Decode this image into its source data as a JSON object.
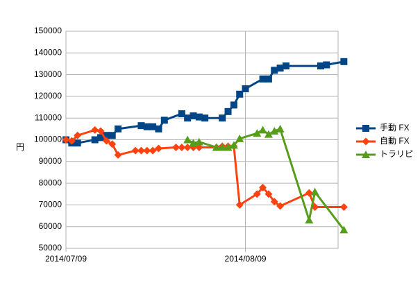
{
  "chart_data": {
    "type": "line",
    "ylabel": "円",
    "ylim": [
      50000,
      150000
    ],
    "yticks": [
      "150000",
      "140000",
      "130000",
      "120000",
      "110000",
      "100000",
      "90000",
      "80000",
      "70000",
      "60000",
      "50000"
    ],
    "xlim": [
      "2014-07-09",
      "2014-08-25"
    ],
    "xticks": [
      {
        "label": "2014/07/09",
        "date": "2014-07-09"
      },
      {
        "label": "2014/08/09",
        "date": "2014-08-09"
      }
    ],
    "grid": {
      "horizontal": true,
      "vertical": true
    },
    "legend_position": "right",
    "series": [
      {
        "name": "手動 FX",
        "color": "#004586",
        "marker": "square",
        "points": [
          [
            "2014-07-09",
            100000
          ],
          [
            "2014-07-10",
            98500
          ],
          [
            "2014-07-11",
            98500
          ],
          [
            "2014-07-14",
            100000
          ],
          [
            "2014-07-15",
            101000
          ],
          [
            "2014-07-16",
            102000
          ],
          [
            "2014-07-17",
            102000
          ],
          [
            "2014-07-18",
            105000
          ],
          [
            "2014-07-22",
            106500
          ],
          [
            "2014-07-23",
            106000
          ],
          [
            "2014-07-24",
            106000
          ],
          [
            "2014-07-25",
            105000
          ],
          [
            "2014-07-26",
            109000
          ],
          [
            "2014-07-29",
            112000
          ],
          [
            "2014-07-30",
            110000
          ],
          [
            "2014-07-31",
            111000
          ],
          [
            "2014-08-01",
            110500
          ],
          [
            "2014-08-02",
            110000
          ],
          [
            "2014-08-05",
            110000
          ],
          [
            "2014-08-06",
            113000
          ],
          [
            "2014-08-07",
            116000
          ],
          [
            "2014-08-08",
            121000
          ],
          [
            "2014-08-09",
            123500
          ],
          [
            "2014-08-12",
            128000
          ],
          [
            "2014-08-13",
            128000
          ],
          [
            "2014-08-14",
            132000
          ],
          [
            "2014-08-15",
            133000
          ],
          [
            "2014-08-16",
            134000
          ],
          [
            "2014-08-22",
            134000
          ],
          [
            "2014-08-23",
            134500
          ],
          [
            "2014-08-26",
            136000
          ]
        ]
      },
      {
        "name": "自動 FX",
        "color": "#ff420e",
        "marker": "diamond",
        "points": [
          [
            "2014-07-09",
            100000
          ],
          [
            "2014-07-10",
            99500
          ],
          [
            "2014-07-11",
            102000
          ],
          [
            "2014-07-14",
            104500
          ],
          [
            "2014-07-15",
            104000
          ],
          [
            "2014-07-16",
            99500
          ],
          [
            "2014-07-17",
            98000
          ],
          [
            "2014-07-18",
            93000
          ],
          [
            "2014-07-21",
            95000
          ],
          [
            "2014-07-22",
            95000
          ],
          [
            "2014-07-23",
            95000
          ],
          [
            "2014-07-24",
            95000
          ],
          [
            "2014-07-25",
            96000
          ],
          [
            "2014-07-28",
            96500
          ],
          [
            "2014-07-29",
            96500
          ],
          [
            "2014-07-30",
            96500
          ],
          [
            "2014-07-31",
            96500
          ],
          [
            "2014-08-01",
            96500
          ],
          [
            "2014-08-04",
            96500
          ],
          [
            "2014-08-05",
            97000
          ],
          [
            "2014-08-06",
            97000
          ],
          [
            "2014-08-07",
            97000
          ],
          [
            "2014-08-08",
            70000
          ],
          [
            "2014-08-11",
            75000
          ],
          [
            "2014-08-12",
            78000
          ],
          [
            "2014-08-13",
            75000
          ],
          [
            "2014-08-14",
            71500
          ],
          [
            "2014-08-15",
            69500
          ],
          [
            "2014-08-20",
            75500
          ],
          [
            "2014-08-21",
            69000
          ],
          [
            "2014-08-26",
            69000
          ]
        ]
      },
      {
        "name": "トラリピ",
        "color": "#579d1c",
        "marker": "triangle",
        "points": [
          [
            "2014-07-30",
            100000
          ],
          [
            "2014-07-31",
            98500
          ],
          [
            "2014-08-01",
            99000
          ],
          [
            "2014-08-04",
            96500
          ],
          [
            "2014-08-05",
            96500
          ],
          [
            "2014-08-06",
            96500
          ],
          [
            "2014-08-07",
            97500
          ],
          [
            "2014-08-08",
            100500
          ],
          [
            "2014-08-11",
            103000
          ],
          [
            "2014-08-12",
            104500
          ],
          [
            "2014-08-13",
            102500
          ],
          [
            "2014-08-14",
            104000
          ],
          [
            "2014-08-15",
            105000
          ],
          [
            "2014-08-20",
            63000
          ],
          [
            "2014-08-21",
            76000
          ],
          [
            "2014-08-26",
            58500
          ]
        ]
      }
    ]
  }
}
